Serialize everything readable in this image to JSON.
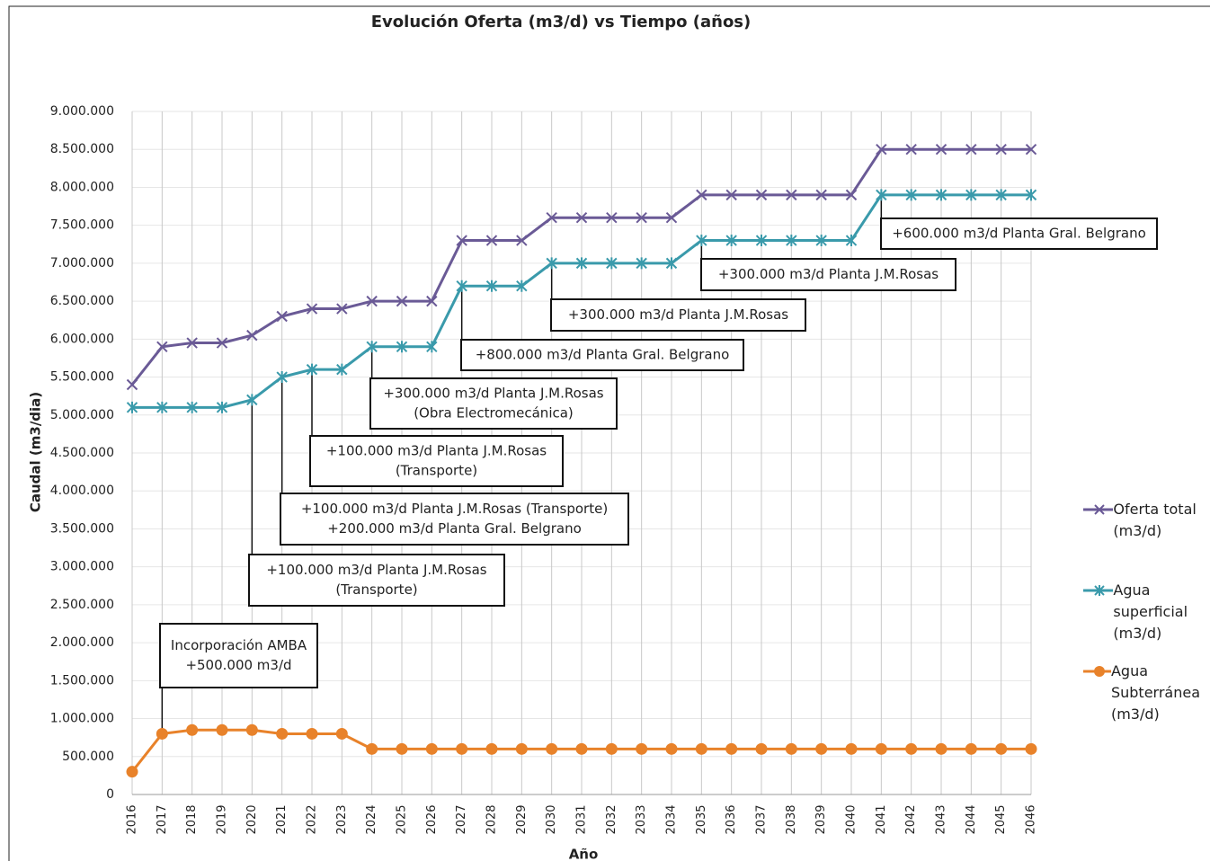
{
  "chart_data": {
    "type": "line",
    "title": "Evolución Oferta (m3/d) vs Tiempo (años)",
    "x_label": "Año",
    "y_label": "Caudal (m3/dia)",
    "categories": [
      "2016",
      "2017",
      "2018",
      "2019",
      "2020",
      "2021",
      "2022",
      "2023",
      "2024",
      "2025",
      "2026",
      "2027",
      "2028",
      "2029",
      "2030",
      "2031",
      "2032",
      "2033",
      "2034",
      "2035",
      "2036",
      "2037",
      "2038",
      "2039",
      "2040",
      "2041",
      "2042",
      "2043",
      "2044",
      "2045",
      "2046"
    ],
    "series": [
      {
        "name": "Oferta total (m3/d)",
        "color": "#6a5a96",
        "marker": "x",
        "values": [
          5400000,
          5900000,
          5950000,
          5950000,
          6050000,
          6300000,
          6400000,
          6400000,
          6500000,
          6500000,
          6500000,
          7300000,
          7300000,
          7300000,
          7600000,
          7600000,
          7600000,
          7600000,
          7600000,
          7900000,
          7900000,
          7900000,
          7900000,
          7900000,
          7900000,
          8500000,
          8500000,
          8500000,
          8500000,
          8500000,
          8500000
        ]
      },
      {
        "name": "Agua superficial (m3/d)",
        "color": "#3a9aab",
        "marker": "star",
        "values": [
          5100000,
          5100000,
          5100000,
          5100000,
          5200000,
          5500000,
          5600000,
          5600000,
          5900000,
          5900000,
          5900000,
          6700000,
          6700000,
          6700000,
          7000000,
          7000000,
          7000000,
          7000000,
          7000000,
          7300000,
          7300000,
          7300000,
          7300000,
          7300000,
          7300000,
          7900000,
          7900000,
          7900000,
          7900000,
          7900000,
          7900000
        ]
      },
      {
        "name": "Agua Subterránea (m3/d)",
        "color": "#e8822a",
        "marker": "circle",
        "values": [
          300000,
          800000,
          850000,
          850000,
          850000,
          800000,
          800000,
          800000,
          600000,
          600000,
          600000,
          600000,
          600000,
          600000,
          600000,
          600000,
          600000,
          600000,
          600000,
          600000,
          600000,
          600000,
          600000,
          600000,
          600000,
          600000,
          600000,
          600000,
          600000,
          600000,
          600000
        ]
      }
    ],
    "ylim": [
      0,
      9000000
    ],
    "yticks": [
      0,
      {
        "value": 500000,
        "label": "500.000"
      },
      {
        "value": 1000000,
        "label": "1.000.000"
      },
      {
        "value": 1500000,
        "label": "1.500.000"
      },
      {
        "value": 2000000,
        "label": "2.000.000"
      },
      {
        "value": 2500000,
        "label": "2.500.000"
      },
      {
        "value": 3000000,
        "label": "3.000.000"
      },
      {
        "value": 3500000,
        "label": "3.500.000"
      },
      {
        "value": 4000000,
        "label": "4.000.000"
      },
      {
        "value": 4500000,
        "label": "4.500.000"
      },
      {
        "value": 5000000,
        "label": "5.000.000"
      },
      {
        "value": 5500000,
        "label": "5.500.000"
      },
      {
        "value": 6000000,
        "label": "6.000.000"
      },
      {
        "value": 6500000,
        "label": "6.500.000"
      },
      {
        "value": 7000000,
        "label": "7.000.000"
      },
      {
        "value": 7500000,
        "label": "7.500.000"
      },
      {
        "value": 8000000,
        "label": "8.000.000"
      },
      {
        "value": 8500000,
        "label": "8.500.000"
      },
      {
        "value": 9000000,
        "label": "9.000.000"
      }
    ],
    "grid": true,
    "legend": "right",
    "annotations": [
      {
        "lines": [
          "Incorporación AMBA",
          "+500.000 m3/d"
        ]
      },
      {
        "lines": [
          "+100.000 m3/d Planta J.M.Rosas",
          "(Transporte)"
        ]
      },
      {
        "lines": [
          "+100.000 m3/d Planta J.M.Rosas (Transporte)",
          "+200.000 m3/d Planta Gral. Belgrano"
        ]
      },
      {
        "lines": [
          "+100.000 m3/d Planta J.M.Rosas",
          "(Transporte)"
        ]
      },
      {
        "lines": [
          "+300.000 m3/d Planta J.M.Rosas",
          "(Obra Electromecánica)"
        ]
      },
      {
        "lines": [
          "+800.000 m3/d Planta Gral. Belgrano"
        ]
      },
      {
        "lines": [
          "+300.000 m3/d Planta J.M.Rosas"
        ]
      },
      {
        "lines": [
          "+300.000 m3/d Planta J.M.Rosas"
        ]
      },
      {
        "lines": [
          "+600.000 m3/d Planta Gral. Belgrano"
        ]
      }
    ]
  }
}
